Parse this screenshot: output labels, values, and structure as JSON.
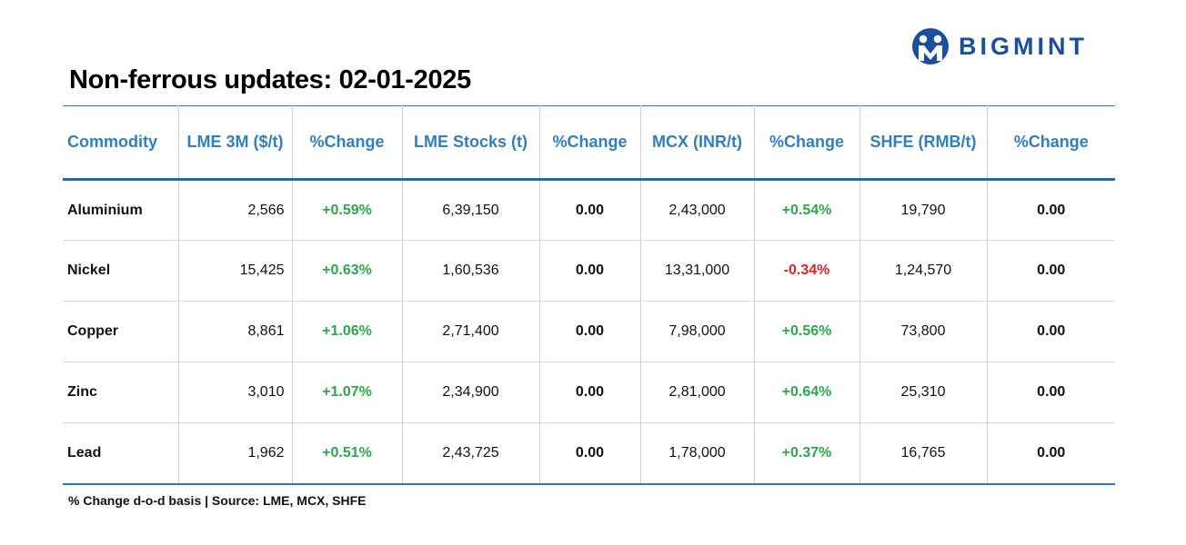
{
  "brand": {
    "name": "BIGMINT",
    "logo_icon": "bigmint-logo-icon",
    "color": "#1a4f9e"
  },
  "title": "Non-ferrous updates: 02-01-2025",
  "table": {
    "headers": [
      "Commodity",
      "LME 3M ($/t)",
      "%Change",
      "LME Stocks (t)",
      "%Change",
      "MCX (INR/t)",
      "%Change",
      "SHFE (RMB/t)",
      "%Change"
    ],
    "rows": [
      {
        "commodity": "Aluminium",
        "lme_3m": "2,566",
        "lme_3m_change": "+0.59%",
        "lme_stocks": "6,39,150",
        "lme_stocks_change": "0.00",
        "mcx": "2,43,000",
        "mcx_change": "+0.54%",
        "shfe": "19,790",
        "shfe_change": "0.00"
      },
      {
        "commodity": "Nickel",
        "lme_3m": "15,425",
        "lme_3m_change": "+0.63%",
        "lme_stocks": "1,60,536",
        "lme_stocks_change": "0.00",
        "mcx": "13,31,000",
        "mcx_change": "-0.34%",
        "shfe": "1,24,570",
        "shfe_change": "0.00"
      },
      {
        "commodity": "Copper",
        "lme_3m": "8,861",
        "lme_3m_change": "+1.06%",
        "lme_stocks": "2,71,400",
        "lme_stocks_change": "0.00",
        "mcx": "7,98,000",
        "mcx_change": "+0.56%",
        "shfe": "73,800",
        "shfe_change": "0.00"
      },
      {
        "commodity": "Zinc",
        "lme_3m": "3,010",
        "lme_3m_change": "+1.07%",
        "lme_stocks": "2,34,900",
        "lme_stocks_change": "0.00",
        "mcx": "2,81,000",
        "mcx_change": "+0.64%",
        "shfe": "25,310",
        "shfe_change": "0.00"
      },
      {
        "commodity": "Lead",
        "lme_3m": "1,962",
        "lme_3m_change": "+0.51%",
        "lme_stocks": "2,43,725",
        "lme_stocks_change": "0.00",
        "mcx": "1,78,000",
        "mcx_change": "+0.37%",
        "shfe": "16,765",
        "shfe_change": "0.00"
      }
    ]
  },
  "footnote": "% Change d-o-d basis | Source: LME, MCX, SHFE",
  "colors": {
    "header_text": "#2f7fc1",
    "rule": "#1f6aa8",
    "positive": "#2aa84a",
    "negative": "#d8232a"
  }
}
